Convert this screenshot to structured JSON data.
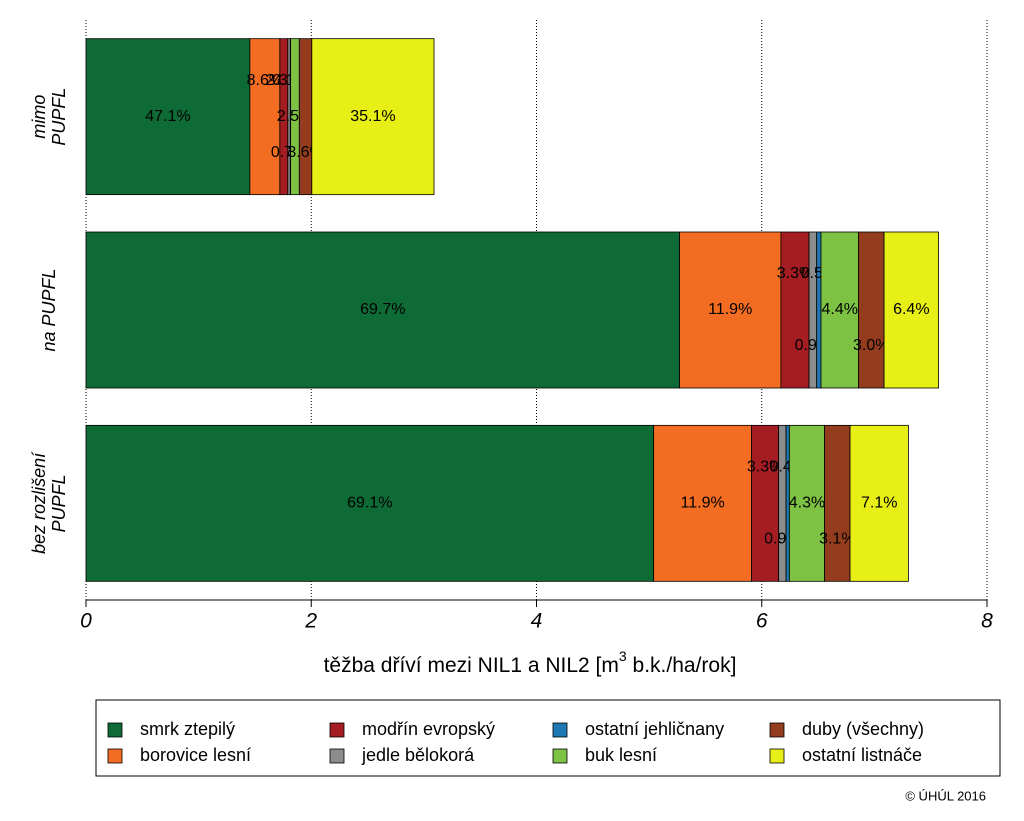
{
  "chart_data": {
    "type": "stacked-barh",
    "categories": [
      [
        "mimo",
        "PUPFL"
      ],
      [
        "na PUPFL"
      ],
      [
        "bez rozlišení",
        "PUPFL"
      ]
    ],
    "series": [
      {
        "name": "smrk ztepilý",
        "color": "#0e6b35",
        "values": [
          1.455,
          5.27,
          5.04
        ],
        "labels": [
          "47.1%",
          "69.7%",
          "69.1%"
        ]
      },
      {
        "name": "borovice lesní",
        "color": "#f26c22",
        "values": [
          0.266,
          0.9,
          0.87
        ],
        "labels": [
          "8.6%",
          "11.9%",
          "11.9%"
        ]
      },
      {
        "name": "modřín evropský",
        "color": "#a31d22",
        "values": [
          0.071,
          0.25,
          0.24
        ],
        "labels": [
          "2.3%",
          "3.3%",
          "3.3%"
        ]
      },
      {
        "name": "jedle bělokorá",
        "color": "#8c8c8c",
        "values": [
          0.022,
          0.068,
          0.066
        ],
        "labels": [
          "0.7%",
          "0.9%",
          "0.9%"
        ]
      },
      {
        "name": "ostatní jehličnany",
        "color": "#1f78b4",
        "values": [
          0.003,
          0.038,
          0.029
        ],
        "labels": [
          "0.1%",
          "0.5%",
          "0.4%"
        ]
      },
      {
        "name": "buk lesní",
        "color": "#7dc242",
        "values": [
          0.077,
          0.333,
          0.313
        ],
        "labels": [
          "2.5%",
          "4.4%",
          "4.3%"
        ]
      },
      {
        "name": "duby (všechny)",
        "color": "#943d1e",
        "values": [
          0.111,
          0.227,
          0.226
        ],
        "labels": [
          "3.6%",
          "3.0%",
          "3.1%"
        ]
      },
      {
        "name": "ostatní listnáče",
        "color": "#e8ef16",
        "values": [
          1.085,
          0.484,
          0.518
        ],
        "labels": [
          "35.1%",
          "6.4%",
          "7.1%"
        ]
      }
    ],
    "xlim": [
      0,
      8
    ],
    "xticks": [
      0,
      2,
      4,
      6,
      8
    ],
    "grid": true,
    "xlabel": {
      "before": "těžba dříví mezi NIL1 a NIL2 [m",
      "sup": "3",
      "after": " b.k./ha/rok]"
    },
    "credit": "© ÚHÚL 2016"
  }
}
